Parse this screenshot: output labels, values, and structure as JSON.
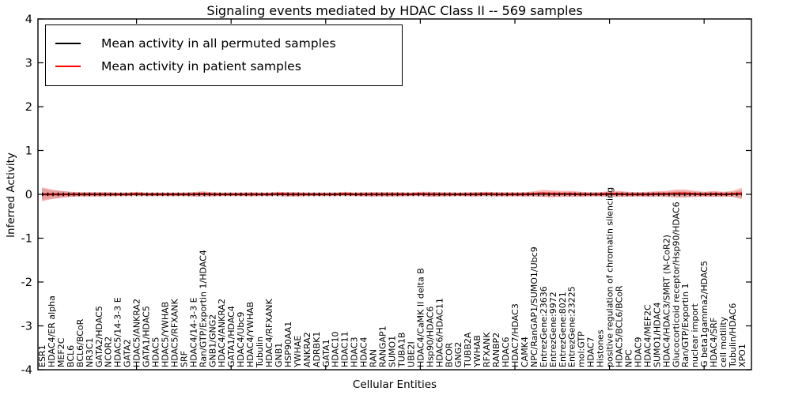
{
  "chart_data": {
    "type": "line",
    "title": "Signaling events mediated by HDAC Class II -- 569 samples",
    "xlabel": "Cellular Entities",
    "ylabel": "Inferred Activity",
    "ylim": [
      -4,
      4
    ],
    "yticks": [
      -4,
      -3,
      -2,
      -1,
      0,
      1,
      2,
      3,
      4
    ],
    "ytick_labels": [
      "-4",
      "-3",
      "-2",
      "-1",
      "0",
      "1",
      "2",
      "3",
      "4"
    ],
    "xtick_positions": [
      10,
      20,
      30,
      40,
      50,
      60,
      70
    ],
    "grid": false,
    "legend_position": "upper left",
    "frame_color": "#000000",
    "categories": [
      "ESR1",
      "HDAC4/ER alpha",
      "MEF2C",
      "BCL6",
      "BCL6/BCoR",
      "NR3C1",
      "GATA2/HDAC5",
      "NCOR2",
      "HDAC5/14-3-3 E",
      "GATA2",
      "HDAC5/ANKRA2",
      "GATA1/HDAC5",
      "HDAC5",
      "HDAC5/YWHAB",
      "HDAC5/RFXANK",
      "SRF",
      "HDAC4/14-3-3 E",
      "Ran/GTP/Exportin 1/HDAC4",
      "GNB1/GNG2",
      "HDAC4/ANKRA2",
      "GATA1/HDAC4",
      "HDAC4/Ubc9",
      "HDAC4/YWHAB",
      "Tubulin",
      "HDAC4/RFXANK",
      "GNB1",
      "HSP90AA1",
      "YWHAE",
      "ANKRA2",
      "ADRBK1",
      "GATA1",
      "HDAC10",
      "HDAC11",
      "HDAC3",
      "HDAC4",
      "RAN",
      "RANGAP1",
      "SUMO1",
      "TUBA1B",
      "UBE2I",
      "HDAC4/CaMK II delta B",
      "Hsp90/HDAC6",
      "HDAC6/HDAC11",
      "BCOR",
      "GNG2",
      "TUBB2A",
      "YWHAB",
      "RFXANK",
      "RANBP2",
      "HDAC6",
      "HDAC7/HDAC3",
      "CAMK4",
      "NPC/RanGAP1/SUMO1/Ubc9",
      "EntrezGene:23636",
      "EntrezGene:9972",
      "EntrezGene:8021",
      "EntrezGene:23225",
      "mol:GTP",
      "HDAC7",
      "Histones",
      "positive regulation of chromatin silencing",
      "HDAC5/BCL6/BCoR",
      "NPC",
      "HDAC9",
      "HDAC4/MEF2C",
      "SUMO1/HDAC4",
      "HDAC4/HDAC3/SMRT (N-CoR2)",
      "Glucocorticoid receptor/Hsp90/HDAC6",
      "Ran/GTP/Exportin 1",
      "nuclear import",
      "G beta1gamma2/HDAC5",
      "HDAC4/SRF",
      "cell motility",
      "Tubulin/HDAC6",
      "XPO1"
    ],
    "series": [
      {
        "name": "Mean activity in all permuted samples",
        "color": "#000000",
        "band_color": "rgba(0,0,0,0.13)",
        "marker": "tick",
        "values": [
          0,
          0,
          0,
          0,
          0,
          0,
          0,
          0,
          0,
          0,
          0,
          0,
          0,
          0,
          0,
          0,
          0,
          0,
          0,
          0,
          0,
          0,
          0,
          0,
          0,
          0,
          0,
          0,
          0,
          0,
          0,
          0,
          0,
          0,
          0,
          0,
          0,
          0,
          0,
          0,
          0,
          0,
          0,
          0,
          0,
          0,
          0,
          0,
          0,
          0,
          0,
          0,
          0,
          0,
          0,
          0,
          0,
          0,
          0,
          0,
          0,
          0,
          0,
          0,
          0,
          0,
          0,
          0,
          0,
          0,
          0,
          0,
          0,
          0,
          0
        ],
        "band": [
          0.13,
          0.1,
          0.08,
          0.06,
          0.05,
          0.05,
          0.05,
          0.04,
          0.04,
          0.04,
          0.04,
          0.04,
          0.04,
          0.04,
          0.04,
          0.04,
          0.05,
          0.05,
          0.04,
          0.04,
          0.04,
          0.04,
          0.04,
          0.04,
          0.04,
          0.04,
          0.05,
          0.05,
          0.04,
          0.04,
          0.04,
          0.04,
          0.04,
          0.04,
          0.04,
          0.05,
          0.05,
          0.05,
          0.04,
          0.04,
          0.04,
          0.05,
          0.05,
          0.04,
          0.04,
          0.04,
          0.05,
          0.05,
          0.05,
          0.04,
          0.04,
          0.05,
          0.05,
          0.06,
          0.06,
          0.05,
          0.05,
          0.05,
          0.04,
          0.05,
          0.06,
          0.06,
          0.05,
          0.05,
          0.05,
          0.06,
          0.06,
          0.07,
          0.07,
          0.06,
          0.05,
          0.06,
          0.05,
          0.06,
          0.09
        ]
      },
      {
        "name": "Mean activity in patient samples",
        "color": "#ff0000",
        "band_color": "rgba(255,0,0,0.28)",
        "marker": "none",
        "values": [
          0,
          0,
          0,
          0,
          0,
          0,
          0,
          0,
          0,
          0,
          0.01,
          0,
          0,
          0,
          0,
          0,
          0,
          0.01,
          0,
          0,
          0,
          0,
          0,
          0,
          0,
          0.01,
          0,
          0,
          0,
          0,
          0,
          0,
          0.01,
          0,
          0,
          0,
          0,
          0,
          0,
          0,
          0.01,
          0,
          0,
          0,
          0,
          0,
          0,
          0.01,
          0,
          0,
          0,
          0,
          0.01,
          0.02,
          0.01,
          0.01,
          0.01,
          0,
          0,
          0,
          0.01,
          0.01,
          0,
          0,
          0,
          0.01,
          0.01,
          0.02,
          0.02,
          0.01,
          0,
          0.01,
          0,
          0.01,
          0.02
        ],
        "band": [
          0.16,
          0.11,
          0.08,
          0.06,
          0.05,
          0.05,
          0.05,
          0.05,
          0.04,
          0.04,
          0.05,
          0.04,
          0.04,
          0.04,
          0.04,
          0.04,
          0.05,
          0.06,
          0.05,
          0.04,
          0.04,
          0.04,
          0.05,
          0.04,
          0.04,
          0.05,
          0.05,
          0.05,
          0.04,
          0.04,
          0.04,
          0.04,
          0.05,
          0.04,
          0.05,
          0.05,
          0.05,
          0.05,
          0.05,
          0.04,
          0.05,
          0.06,
          0.05,
          0.05,
          0.04,
          0.05,
          0.05,
          0.05,
          0.05,
          0.05,
          0.05,
          0.05,
          0.06,
          0.08,
          0.08,
          0.07,
          0.07,
          0.06,
          0.05,
          0.05,
          0.06,
          0.07,
          0.06,
          0.05,
          0.06,
          0.06,
          0.07,
          0.09,
          0.09,
          0.07,
          0.06,
          0.07,
          0.06,
          0.07,
          0.13
        ]
      }
    ]
  }
}
